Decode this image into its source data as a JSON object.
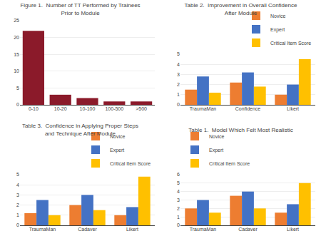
{
  "chart_data": [
    {
      "type": "bar",
      "title": "Figure 1.  Number of TT Performed by Trainees Prior to Module",
      "categories": [
        "0-10",
        "10-20",
        "10-100",
        "100-500",
        ">500"
      ],
      "values": [
        22,
        3,
        2,
        1,
        1
      ],
      "color": "#8B1A2A",
      "ylim": [
        0,
        25
      ],
      "yticks": [
        0,
        5,
        10,
        15,
        20,
        25
      ],
      "grid": true
    },
    {
      "type": "bar",
      "title": "Table 2.  Improvement in Overall Confidence After Module",
      "categories": [
        "TraumaMan",
        "Confidence",
        "Likert"
      ],
      "series": [
        {
          "name": "Novice",
          "color": "#ED7D31",
          "values": [
            1.5,
            2.2,
            1.0
          ]
        },
        {
          "name": "Expert",
          "color": "#4472C4",
          "values": [
            2.8,
            3.2,
            2.0
          ]
        },
        {
          "name": "Critical Item Score",
          "color": "#FFC000",
          "values": [
            1.2,
            1.8,
            4.5
          ]
        }
      ],
      "ylim": [
        0,
        5
      ],
      "yticks": [
        0,
        1,
        2,
        3,
        4,
        5
      ],
      "grid": true,
      "legend": "upper right"
    },
    {
      "type": "bar",
      "title": "Table 3.  Confidence in Applying Proper Steps and Technique After Module",
      "categories": [
        "TraumaMan",
        "Cadaver",
        "Likert"
      ],
      "series": [
        {
          "name": "Novice",
          "color": "#ED7D31",
          "values": [
            1.2,
            2.0,
            1.0
          ]
        },
        {
          "name": "Expert",
          "color": "#4472C4",
          "values": [
            2.5,
            3.0,
            1.8
          ]
        },
        {
          "name": "Critical Item Score",
          "color": "#FFC000",
          "values": [
            1.0,
            1.5,
            4.8
          ]
        }
      ],
      "ylim": [
        0,
        5
      ],
      "yticks": [
        0,
        1,
        2,
        3,
        4,
        5
      ],
      "grid": true,
      "legend": "upper right"
    },
    {
      "type": "bar",
      "title": "Table 1.  Model Which Felt Most Realistic",
      "categories": [
        "TraumaMan",
        "Cadaver",
        "Likert"
      ],
      "series": [
        {
          "name": "Novice",
          "color": "#ED7D31",
          "values": [
            2.0,
            3.5,
            1.5
          ]
        },
        {
          "name": "Expert",
          "color": "#4472C4",
          "values": [
            3.0,
            4.0,
            2.5
          ]
        },
        {
          "name": "Critical Item Score",
          "color": "#FFC000",
          "values": [
            1.5,
            2.0,
            5.0
          ]
        }
      ],
      "ylim": [
        0,
        6
      ],
      "yticks": [
        0,
        1,
        2,
        3,
        4,
        5,
        6
      ],
      "grid": true,
      "legend": "upper left"
    }
  ]
}
